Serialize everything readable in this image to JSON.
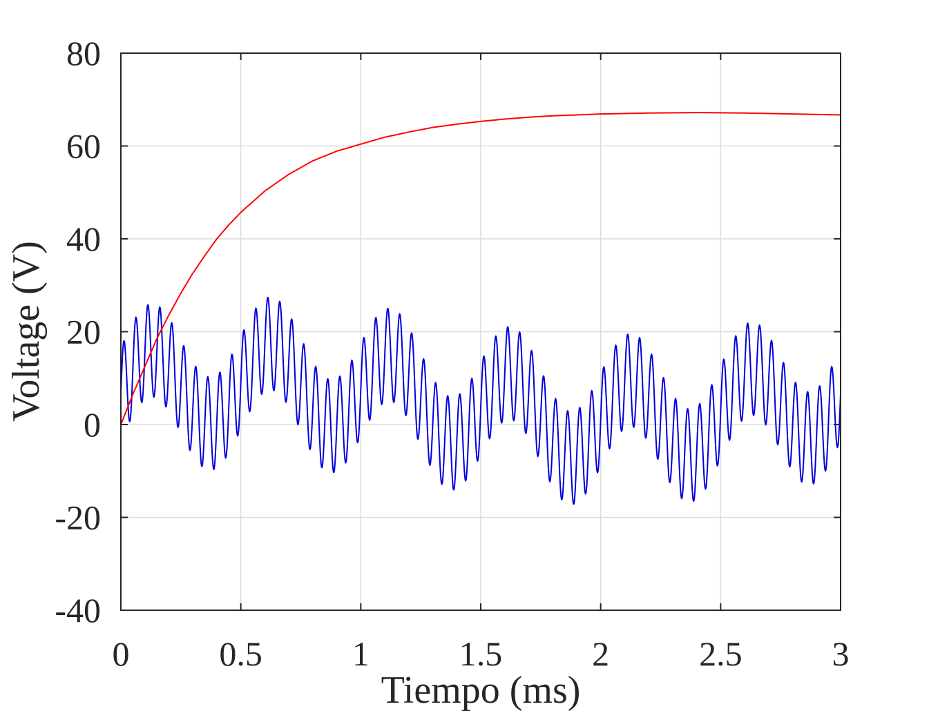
{
  "chart_data": {
    "type": "line",
    "title": "",
    "xlabel": "Tiempo (ms)",
    "ylabel": "Voltage (V)",
    "xlim": [
      0,
      3
    ],
    "ylim": [
      -40,
      80
    ],
    "xticks": [
      0,
      0.5,
      1,
      1.5,
      2,
      2.5,
      3
    ],
    "xtick_labels": [
      "0",
      "0.5",
      "1",
      "1.5",
      "2",
      "2.5",
      "3"
    ],
    "yticks": [
      -40,
      -20,
      0,
      20,
      40,
      60,
      80
    ],
    "ytick_labels": [
      "-40",
      "-20",
      "0",
      "20",
      "40",
      "60",
      "80"
    ],
    "grid": true,
    "legend": "none",
    "series": [
      {
        "color": "#ff0000",
        "points": [
          [
            0,
            0
          ],
          [
            0.05,
            6.5
          ],
          [
            0.1,
            12.5
          ],
          [
            0.15,
            18.5
          ],
          [
            0.2,
            23.6
          ],
          [
            0.25,
            28.3
          ],
          [
            0.3,
            32.6
          ],
          [
            0.35,
            36.4
          ],
          [
            0.4,
            40
          ],
          [
            0.45,
            43
          ],
          [
            0.5,
            45.7
          ],
          [
            0.6,
            50.3
          ],
          [
            0.7,
            53.9
          ],
          [
            0.8,
            56.8
          ],
          [
            0.9,
            58.9
          ],
          [
            1.0,
            60.4
          ],
          [
            1.1,
            61.9
          ],
          [
            1.2,
            63
          ],
          [
            1.3,
            64
          ],
          [
            1.4,
            64.7
          ],
          [
            1.5,
            65.3
          ],
          [
            1.6,
            65.8
          ],
          [
            1.7,
            66.2
          ],
          [
            1.8,
            66.5
          ],
          [
            1.9,
            66.7
          ],
          [
            2.0,
            66.9
          ],
          [
            2.2,
            67.1
          ],
          [
            2.4,
            67.2
          ],
          [
            2.6,
            67.1
          ],
          [
            2.8,
            66.9
          ],
          [
            3.0,
            66.7
          ]
        ]
      },
      {
        "color": "#0000dd",
        "description_of_shape": "sum of a 20 kHz oscillation (amplitude ~10 V) riding on a 2 kHz oscillation (amplitude ~8.5 V) plus a slow sinusoidal drift",
        "components": {
          "fast_frequency_khz": 20,
          "fast_amplitude": 10,
          "slow_frequency_khz": 2,
          "slow_amplitude": 8.5,
          "drift_amplitude": 4,
          "drift_period_ms": 3,
          "offset": 5
        },
        "envelope_peaks": [
          [
            0.05,
            18
          ],
          [
            0.1,
            21.5
          ],
          [
            0.15,
            21
          ],
          [
            0.4,
            6.5
          ],
          [
            0.6,
            27.5
          ],
          [
            0.65,
            27
          ],
          [
            0.85,
            11
          ],
          [
            1.1,
            31
          ],
          [
            1.15,
            30
          ],
          [
            1.35,
            11
          ],
          [
            1.6,
            30.8
          ],
          [
            1.65,
            29.8
          ],
          [
            1.85,
            9.5
          ],
          [
            2.1,
            27
          ],
          [
            2.15,
            25
          ],
          [
            2.35,
            5
          ],
          [
            2.6,
            21.5
          ],
          [
            2.65,
            20
          ],
          [
            2.9,
            0
          ],
          [
            2.95,
            3.5
          ]
        ],
        "envelope_troughs": [
          [
            0.03,
            -5
          ],
          [
            0.35,
            -14
          ],
          [
            0.38,
            -14.5
          ],
          [
            0.58,
            6.5
          ],
          [
            0.85,
            -9
          ],
          [
            0.88,
            -9.5
          ],
          [
            1.1,
            11
          ],
          [
            1.35,
            -8
          ],
          [
            1.6,
            11
          ],
          [
            1.85,
            -9.5
          ],
          [
            2.1,
            7
          ],
          [
            2.35,
            -14
          ],
          [
            2.38,
            -15
          ],
          [
            2.6,
            0
          ],
          [
            2.85,
            -19
          ],
          [
            2.88,
            -20.5
          ]
        ]
      }
    ]
  }
}
